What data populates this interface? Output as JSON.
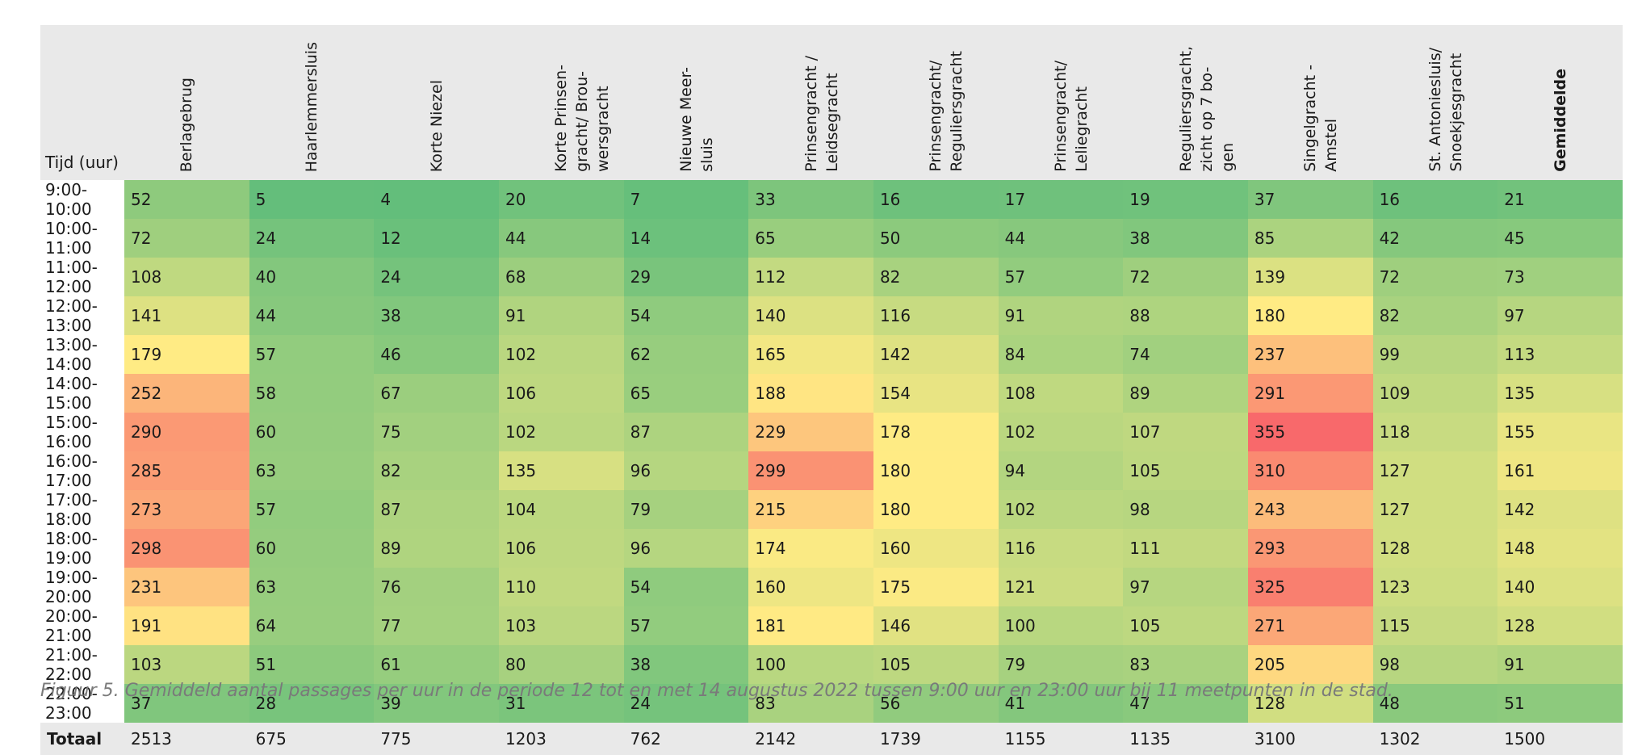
{
  "chart_data": {
    "type": "heatmap",
    "row_header_label": "Tijd (uur)",
    "columns": [
      {
        "label": "Berlagebrug",
        "bold": false
      },
      {
        "label": "Haarlemmersluis",
        "bold": false
      },
      {
        "label": "Korte Niezel",
        "bold": false
      },
      {
        "label": "Korte Prinsen-\ngracht/ Brou-\nwersgracht",
        "bold": false
      },
      {
        "label": "Nieuwe Meer-\nsluis",
        "bold": false
      },
      {
        "label": "Prinsengracht /\nLeidsegracht",
        "bold": false
      },
      {
        "label": "Prinsengracht/\nReguliersgracht",
        "bold": false
      },
      {
        "label": "Prinsengracht/\nLeliegracht",
        "bold": false
      },
      {
        "label": "Reguliersgracht,\nzicht op 7 bo-\ngen",
        "bold": false
      },
      {
        "label": "Singelgracht -\nAmstel",
        "bold": false
      },
      {
        "label": "St. Antoniesluis/\nSnoekjesgracht",
        "bold": false
      },
      {
        "label": "Gemiddelde",
        "bold": true
      }
    ],
    "rows": [
      {
        "time": "9:00-10:00",
        "values": [
          52,
          5,
          4,
          20,
          7,
          33,
          16,
          17,
          19,
          37,
          16,
          21
        ]
      },
      {
        "time": "10:00-11:00",
        "values": [
          72,
          24,
          12,
          44,
          14,
          65,
          50,
          44,
          38,
          85,
          42,
          45
        ]
      },
      {
        "time": "11:00-12:00",
        "values": [
          108,
          40,
          24,
          68,
          29,
          112,
          82,
          57,
          72,
          139,
          72,
          73
        ]
      },
      {
        "time": "12:00-13:00",
        "values": [
          141,
          44,
          38,
          91,
          54,
          140,
          116,
          91,
          88,
          180,
          82,
          97
        ]
      },
      {
        "time": "13:00-14:00",
        "values": [
          179,
          57,
          46,
          102,
          62,
          165,
          142,
          84,
          74,
          237,
          99,
          113
        ]
      },
      {
        "time": "14:00-15:00",
        "values": [
          252,
          58,
          67,
          106,
          65,
          188,
          154,
          108,
          89,
          291,
          109,
          135
        ]
      },
      {
        "time": "15:00-16:00",
        "values": [
          290,
          60,
          75,
          102,
          87,
          229,
          178,
          102,
          107,
          355,
          118,
          155
        ]
      },
      {
        "time": "16:00-17:00",
        "values": [
          285,
          63,
          82,
          135,
          96,
          299,
          180,
          94,
          105,
          310,
          127,
          161
        ]
      },
      {
        "time": "17:00-18:00",
        "values": [
          273,
          57,
          87,
          104,
          79,
          215,
          180,
          102,
          98,
          243,
          127,
          142
        ]
      },
      {
        "time": "18:00-19:00",
        "values": [
          298,
          60,
          89,
          106,
          96,
          174,
          160,
          116,
          111,
          293,
          128,
          148
        ]
      },
      {
        "time": "19:00-20:00",
        "values": [
          231,
          63,
          76,
          110,
          54,
          160,
          175,
          121,
          97,
          325,
          123,
          140
        ]
      },
      {
        "time": "20:00-21:00",
        "values": [
          191,
          64,
          77,
          103,
          57,
          181,
          146,
          100,
          105,
          271,
          115,
          128
        ]
      },
      {
        "time": "21:00-22:00",
        "values": [
          103,
          51,
          61,
          80,
          38,
          100,
          105,
          79,
          83,
          205,
          98,
          91
        ]
      },
      {
        "time": "22:00-23:00",
        "values": [
          37,
          28,
          39,
          31,
          24,
          83,
          56,
          41,
          47,
          128,
          48,
          51
        ]
      }
    ],
    "total": {
      "label": "Totaal",
      "values": [
        2513,
        675,
        775,
        1203,
        762,
        2142,
        1739,
        1155,
        1135,
        3100,
        1302,
        1500
      ]
    },
    "color_scale": {
      "low": "#63be7b",
      "mid": "#ffeb84",
      "high": "#f8696b"
    }
  },
  "caption": "Figuur 5. Gemiddeld aantal passages per uur in de periode 12 tot en met 14 augustus 2022 tussen 9:00 uur en 23:00 uur bij 11 meetpunten in de stad."
}
